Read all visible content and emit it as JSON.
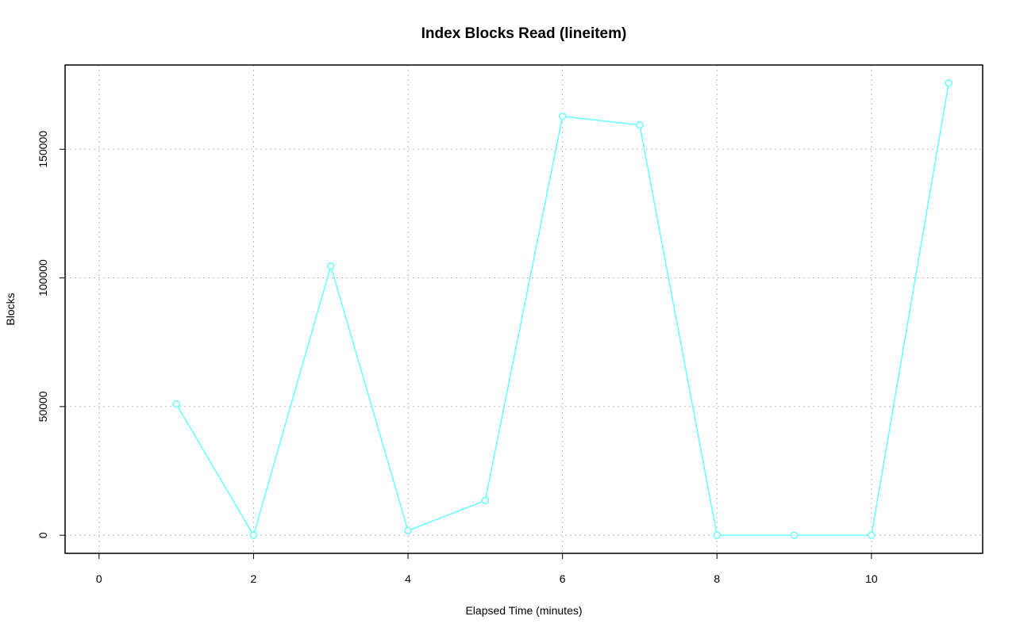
{
  "chart_data": {
    "type": "line",
    "title": "Index Blocks Read (lineitem)",
    "x_label": "Elapsed Time (minutes)",
    "y_label": "Blocks",
    "x": [
      1,
      2,
      3,
      4,
      5,
      6,
      7,
      8,
      9,
      10,
      11
    ],
    "values": [
      51000,
      0,
      104600,
      1800,
      13500,
      162800,
      159400,
      0,
      0,
      0,
      175700
    ],
    "color": "#66ffff",
    "markers": true,
    "xlim": [
      -0.44,
      11.44
    ],
    "xticks": [
      0,
      2,
      4,
      6,
      8,
      10
    ],
    "ylim": [
      -7028,
      182728
    ],
    "yticks": [
      0,
      50000,
      100000,
      150000
    ],
    "grid": true
  }
}
